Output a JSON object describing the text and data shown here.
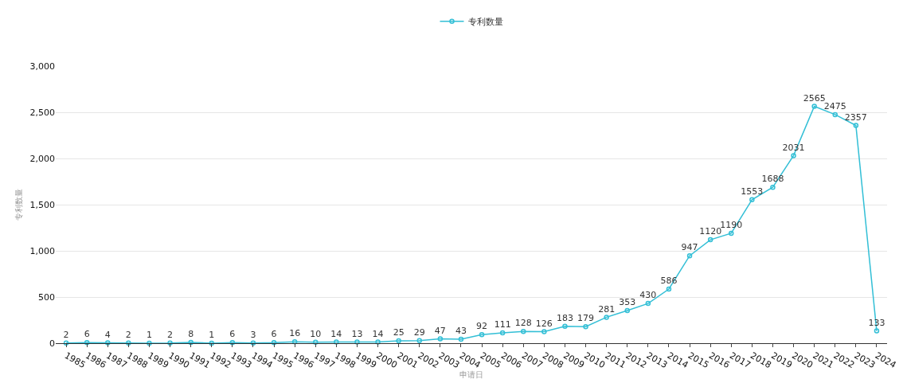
{
  "chart_data": {
    "type": "line",
    "xlabel": "申请日",
    "ylabel": "专利数量",
    "categories": [
      "1985",
      "1986",
      "1987",
      "1988",
      "1989",
      "1990",
      "1991",
      "1992",
      "1993",
      "1994",
      "1995",
      "1996",
      "1997",
      "1998",
      "1999",
      "2000",
      "2001",
      "2002",
      "2003",
      "2004",
      "2005",
      "2006",
      "2007",
      "2008",
      "2009",
      "2010",
      "2011",
      "2012",
      "2013",
      "2014",
      "2015",
      "2016",
      "2017",
      "2018",
      "2019",
      "2020",
      "2021",
      "2022",
      "2023",
      "2024"
    ],
    "series": [
      {
        "name": "专利数量",
        "color": "#33bfd6",
        "values": [
          2,
          6,
          4,
          2,
          1,
          2,
          8,
          1,
          6,
          3,
          6,
          16,
          10,
          14,
          13,
          14,
          25,
          29,
          47,
          43,
          92,
          111,
          128,
          126,
          183,
          179,
          281,
          353,
          430,
          586,
          947,
          1120,
          1190,
          1553,
          1688,
          2031,
          2565,
          2475,
          2357,
          133
        ]
      }
    ],
    "ylim": [
      0,
      3000
    ],
    "yticks": [
      0,
      {
        "value": 500,
        "label": "500"
      },
      {
        "value": 1000,
        "label": "1,000"
      },
      {
        "value": 1500,
        "label": "1,500"
      },
      {
        "value": 2000,
        "label": "2,000"
      },
      {
        "value": 2500,
        "label": "2,500"
      },
      {
        "value": 3000,
        "label": "3,000"
      }
    ],
    "grid": "y",
    "legend": "top",
    "marker": "circle",
    "line_style": "solid",
    "data_labels": true
  }
}
